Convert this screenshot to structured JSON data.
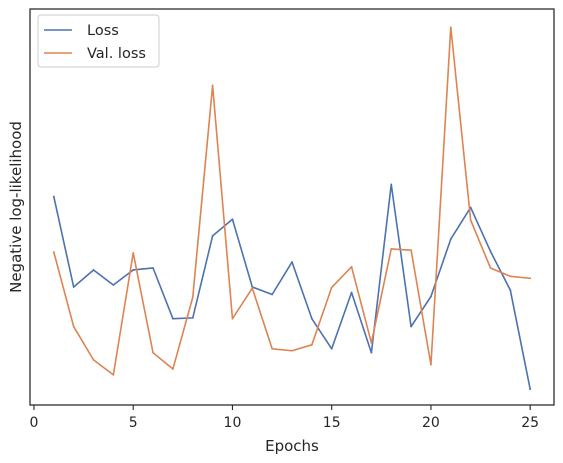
{
  "chart_data": {
    "type": "line",
    "title": "",
    "xlabel": "Epochs",
    "ylabel": "Negative log-likelihood",
    "xlim": [
      -0.2,
      26.2
    ],
    "ylim": [
      0,
      100
    ],
    "xticks": [
      0,
      5,
      10,
      15,
      20,
      25
    ],
    "yticks_shown": false,
    "grid": false,
    "legend_position": "top-left",
    "x": [
      1,
      2,
      3,
      4,
      5,
      6,
      7,
      8,
      9,
      10,
      11,
      12,
      13,
      14,
      15,
      16,
      17,
      18,
      19,
      20,
      21,
      22,
      23,
      24,
      25
    ],
    "series": [
      {
        "name": "Loss",
        "color": "#4c72b0",
        "values": [
          52.6,
          29.8,
          34.1,
          30.3,
          34.1,
          34.6,
          21.8,
          22.0,
          42.7,
          46.9,
          29.8,
          27.9,
          36.1,
          21.8,
          14.2,
          28.4,
          13.2,
          55.7,
          19.8,
          27.4,
          41.9,
          49.9,
          38.8,
          29.0,
          4.0
        ]
      },
      {
        "name": "Val. loss",
        "color": "#dd8452",
        "values": [
          38.6,
          19.8,
          11.4,
          7.6,
          38.4,
          13.2,
          9.1,
          27.2,
          80.7,
          21.8,
          29.5,
          14.2,
          13.7,
          15.2,
          29.7,
          34.9,
          15.7,
          39.4,
          39.1,
          10.2,
          95.4,
          46.7,
          34.6,
          32.5,
          32.0
        ]
      }
    ]
  }
}
